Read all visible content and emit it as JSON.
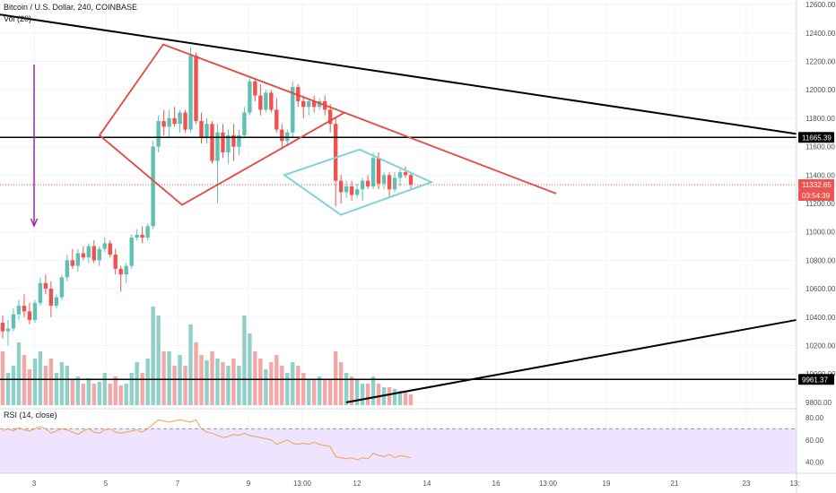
{
  "header": {
    "symbol_line": "Bitcoin / U.S. Dollar, 240, COINBASE",
    "volume_label": "Vol (20)",
    "rsi_label": "RSI (14, close)"
  },
  "colors": {
    "up": "#5fc0b4",
    "down": "#ef5350",
    "volume_up": "#8fd1c8",
    "volume_down": "#f4a7a7",
    "pattern_red": "#e5473c",
    "pattern_cyan": "#7fd3dd",
    "trend_black": "#000000",
    "rsi_line": "#f5a04a",
    "rsi_band": "#efe4ff",
    "price_badge": "#ef5350",
    "level_badge": "#000000",
    "arrow": "#9c27b0"
  },
  "price_axis": {
    "ticks": [
      "12600.00",
      "12400.00",
      "12200.00",
      "12000.00",
      "11800.00",
      "11600.00",
      "11400.00",
      "11200.00",
      "11000.00",
      "10800.00",
      "10600.00",
      "10400.00",
      "10200.00",
      "10000.00",
      "9800.00"
    ],
    "current_price": "11332.65",
    "countdown": "03:54:39",
    "level_upper": "11665.39",
    "level_lower": "9961.37"
  },
  "rsi_axis": {
    "ticks": [
      "80.00",
      "60.00",
      "40.00"
    ]
  },
  "time_axis": {
    "ticks": [
      "3",
      "5",
      "7",
      "9",
      "13:00",
      "12",
      "14",
      "16",
      "13:00",
      "19",
      "21",
      "23",
      "13:"
    ]
  },
  "chart_data": {
    "type": "candlestick",
    "ylim": [
      9780,
      12620
    ],
    "candles": [
      [
        10360,
        10410,
        10250,
        10300,
        30
      ],
      [
        10300,
        10380,
        10200,
        10320,
        18
      ],
      [
        10320,
        10460,
        10300,
        10420,
        22
      ],
      [
        10420,
        10520,
        10380,
        10480,
        35
      ],
      [
        10480,
        10560,
        10400,
        10440,
        28
      ],
      [
        10440,
        10500,
        10350,
        10380,
        20
      ],
      [
        10380,
        10520,
        10360,
        10500,
        26
      ],
      [
        10500,
        10680,
        10480,
        10640,
        30
      ],
      [
        10640,
        10700,
        10560,
        10600,
        22
      ],
      [
        10600,
        10650,
        10400,
        10480,
        26
      ],
      [
        10480,
        10560,
        10460,
        10540,
        18
      ],
      [
        10540,
        10700,
        10520,
        10680,
        24
      ],
      [
        10680,
        10840,
        10650,
        10800,
        22
      ],
      [
        10800,
        10880,
        10740,
        10760,
        14
      ],
      [
        10760,
        10880,
        10720,
        10850,
        16
      ],
      [
        10850,
        10900,
        10800,
        10820,
        12
      ],
      [
        10820,
        10920,
        10780,
        10900,
        15
      ],
      [
        10900,
        10940,
        10780,
        10800,
        12
      ],
      [
        10800,
        10900,
        10760,
        10880,
        13
      ],
      [
        10880,
        10960,
        10860,
        10920,
        18
      ],
      [
        10920,
        10940,
        10820,
        10840,
        12
      ],
      [
        10840,
        10880,
        10700,
        10740,
        16
      ],
      [
        10740,
        10760,
        10580,
        10700,
        11
      ],
      [
        10700,
        10780,
        10640,
        10760,
        12
      ],
      [
        10760,
        10980,
        10740,
        10960,
        18
      ],
      [
        10960,
        11020,
        10940,
        10980,
        24
      ],
      [
        10980,
        11040,
        10920,
        10960,
        18
      ],
      [
        10960,
        11060,
        10940,
        11040,
        26
      ],
      [
        11040,
        11640,
        11020,
        11600,
        55
      ],
      [
        11600,
        11820,
        11560,
        11780,
        50
      ],
      [
        11780,
        11860,
        11680,
        11740,
        30
      ],
      [
        11740,
        11860,
        11660,
        11800,
        30
      ],
      [
        11800,
        11880,
        11740,
        11760,
        22
      ],
      [
        11760,
        11860,
        11700,
        11840,
        28
      ],
      [
        11840,
        11860,
        11700,
        11720,
        22
      ],
      [
        11720,
        12300,
        11700,
        12240,
        45
      ],
      [
        12240,
        12260,
        11760,
        11780,
        35
      ],
      [
        11780,
        11840,
        11620,
        11660,
        28
      ],
      [
        11660,
        11800,
        11620,
        11760,
        25
      ],
      [
        11760,
        11780,
        11480,
        11500,
        30
      ],
      [
        11500,
        11760,
        11200,
        11700,
        26
      ],
      [
        11700,
        11760,
        11520,
        11560,
        24
      ],
      [
        11560,
        11720,
        11480,
        11680,
        22
      ],
      [
        11680,
        11760,
        11500,
        11600,
        26
      ],
      [
        11600,
        11720,
        11540,
        11680,
        22
      ],
      [
        11680,
        11880,
        11660,
        11840,
        50
      ],
      [
        11840,
        12080,
        11820,
        12060,
        40
      ],
      [
        12060,
        12080,
        11920,
        11960,
        30
      ],
      [
        11960,
        12040,
        11820,
        11860,
        26
      ],
      [
        11860,
        12000,
        11840,
        11980,
        20
      ],
      [
        11980,
        12000,
        11840,
        11860,
        24
      ],
      [
        11860,
        11940,
        11700,
        11720,
        28
      ],
      [
        11720,
        11760,
        11580,
        11640,
        22
      ],
      [
        11640,
        11720,
        11600,
        11700,
        18
      ],
      [
        11700,
        12060,
        11660,
        12020,
        24
      ],
      [
        12020,
        12040,
        11880,
        11920,
        22
      ],
      [
        11920,
        11960,
        11800,
        11880,
        18
      ],
      [
        11880,
        11940,
        11820,
        11920,
        14
      ],
      [
        11920,
        11960,
        11840,
        11880,
        14
      ],
      [
        11880,
        11940,
        11860,
        11920,
        16
      ],
      [
        11920,
        11960,
        11820,
        11860,
        14
      ],
      [
        11860,
        11900,
        11700,
        11760,
        14
      ],
      [
        11760,
        11800,
        11180,
        11360,
        30
      ],
      [
        11360,
        11400,
        11200,
        11280,
        24
      ],
      [
        11280,
        11360,
        11240,
        11320,
        18
      ],
      [
        11320,
        11360,
        11220,
        11260,
        16
      ],
      [
        11260,
        11340,
        11240,
        11300,
        14
      ],
      [
        11300,
        11380,
        11220,
        11360,
        12
      ],
      [
        11360,
        11400,
        11300,
        11320,
        12
      ],
      [
        11320,
        11560,
        11300,
        11520,
        16
      ],
      [
        11520,
        11560,
        11300,
        11340,
        12
      ],
      [
        11340,
        11420,
        11300,
        11400,
        10
      ],
      [
        11400,
        11420,
        11240,
        11300,
        10
      ],
      [
        11300,
        11420,
        11280,
        11380,
        9
      ],
      [
        11380,
        11440,
        11320,
        11420,
        8
      ],
      [
        11420,
        11460,
        11380,
        11400,
        8
      ],
      [
        11400,
        11420,
        11300,
        11332,
        6
      ]
    ],
    "rsi": [
      68,
      70,
      68,
      71,
      69,
      68,
      70,
      72,
      70,
      66,
      68,
      70,
      69,
      67,
      65,
      68,
      70,
      67,
      66,
      69,
      70,
      67,
      66,
      67,
      68,
      69,
      67,
      70,
      74,
      78,
      77,
      76,
      77,
      78,
      77,
      76,
      78,
      70,
      67,
      66,
      64,
      62,
      63,
      65,
      64,
      66,
      64,
      63,
      62,
      61,
      60,
      56,
      58,
      60,
      57,
      56,
      57,
      56,
      58,
      56,
      55,
      54,
      45,
      44,
      43,
      44,
      42,
      44,
      43,
      48,
      46,
      45,
      47,
      44,
      46,
      45,
      44
    ]
  }
}
